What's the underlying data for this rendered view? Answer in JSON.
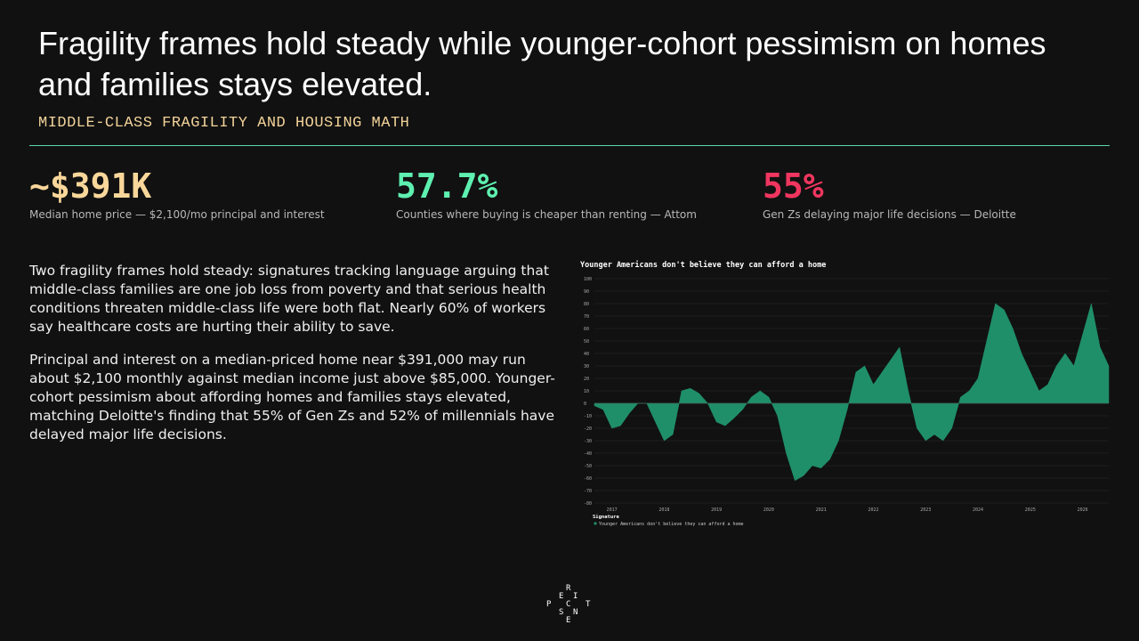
{
  "header": {
    "title": "Fragility frames hold steady while younger-cohort pessimism on homes and families stays elevated.",
    "subtitle": "MIDDLE-CLASS FRAGILITY AND HOUSING MATH"
  },
  "stats": [
    {
      "value": "~$391K",
      "caption": "Median home price — $2,100/mo principal and interest",
      "color": "#f9d79a"
    },
    {
      "value": "57.7%",
      "caption": "Counties where buying is cheaper than renting — Attom",
      "color": "#5ef0b0"
    },
    {
      "value": "55%",
      "caption": "Gen Zs delaying major life decisions — Deloitte",
      "color": "#f0365f"
    }
  ],
  "paragraphs": [
    "Two fragility frames hold steady: signatures tracking language arguing that middle-class families are one job loss from poverty and that serious health conditions threaten middle-class life were both flat. Nearly 60% of workers say healthcare costs are hurting their ability to save.",
    "Principal and interest on a median-priced home near $391,000 may run about $2,100 monthly against median income just above $85,000. Younger-cohort pessimism about affording homes and families stays elevated, matching Deloitte's finding that 55% of Gen Zs and 52% of millennials have delayed major life decisions."
  ],
  "chart_data": {
    "type": "area",
    "title": "Younger Americans don't believe they can afford a home",
    "categories": [
      null,
      null,
      "2017",
      null,
      null,
      null,
      null,
      null,
      "2018",
      null,
      null,
      null,
      null,
      null,
      "2019",
      null,
      null,
      null,
      null,
      null,
      "2020",
      null,
      null,
      null,
      null,
      null,
      "2021",
      null,
      null,
      null,
      null,
      null,
      "2022",
      null,
      null,
      null,
      null,
      null,
      "2023",
      null,
      null,
      null,
      null,
      null,
      "2024",
      null,
      null,
      null,
      null,
      null,
      "2025",
      null,
      null,
      null,
      null,
      null,
      "2026",
      null,
      null,
      null
    ],
    "series": [
      {
        "name": "Younger Americans don't believe they can afford a home",
        "color": "#1f8f6a",
        "values": [
          -2,
          -5,
          -20,
          -18,
          -8,
          0,
          0,
          -15,
          -30,
          -25,
          10,
          12,
          8,
          0,
          -15,
          -18,
          -12,
          -5,
          5,
          10,
          5,
          -10,
          -40,
          -62,
          -58,
          -50,
          -52,
          -45,
          -30,
          -5,
          25,
          30,
          15,
          25,
          35,
          45,
          10,
          -20,
          -30,
          -25,
          -30,
          -20,
          5,
          10,
          20,
          50,
          80,
          75,
          60,
          40,
          25,
          10,
          15,
          30,
          40,
          30,
          55,
          80,
          45,
          30
        ]
      }
    ],
    "legend_title": "Signature",
    "ylim": [
      -80,
      100
    ],
    "yticks": [
      -80,
      -70,
      -60,
      -50,
      -40,
      -30,
      -20,
      -10,
      0,
      10,
      20,
      30,
      40,
      50,
      60,
      70,
      80,
      90,
      100
    ],
    "grid": true
  },
  "logo": [
    "R",
    "E",
    "I",
    "P",
    "C",
    "T",
    "S",
    "N",
    "E"
  ]
}
